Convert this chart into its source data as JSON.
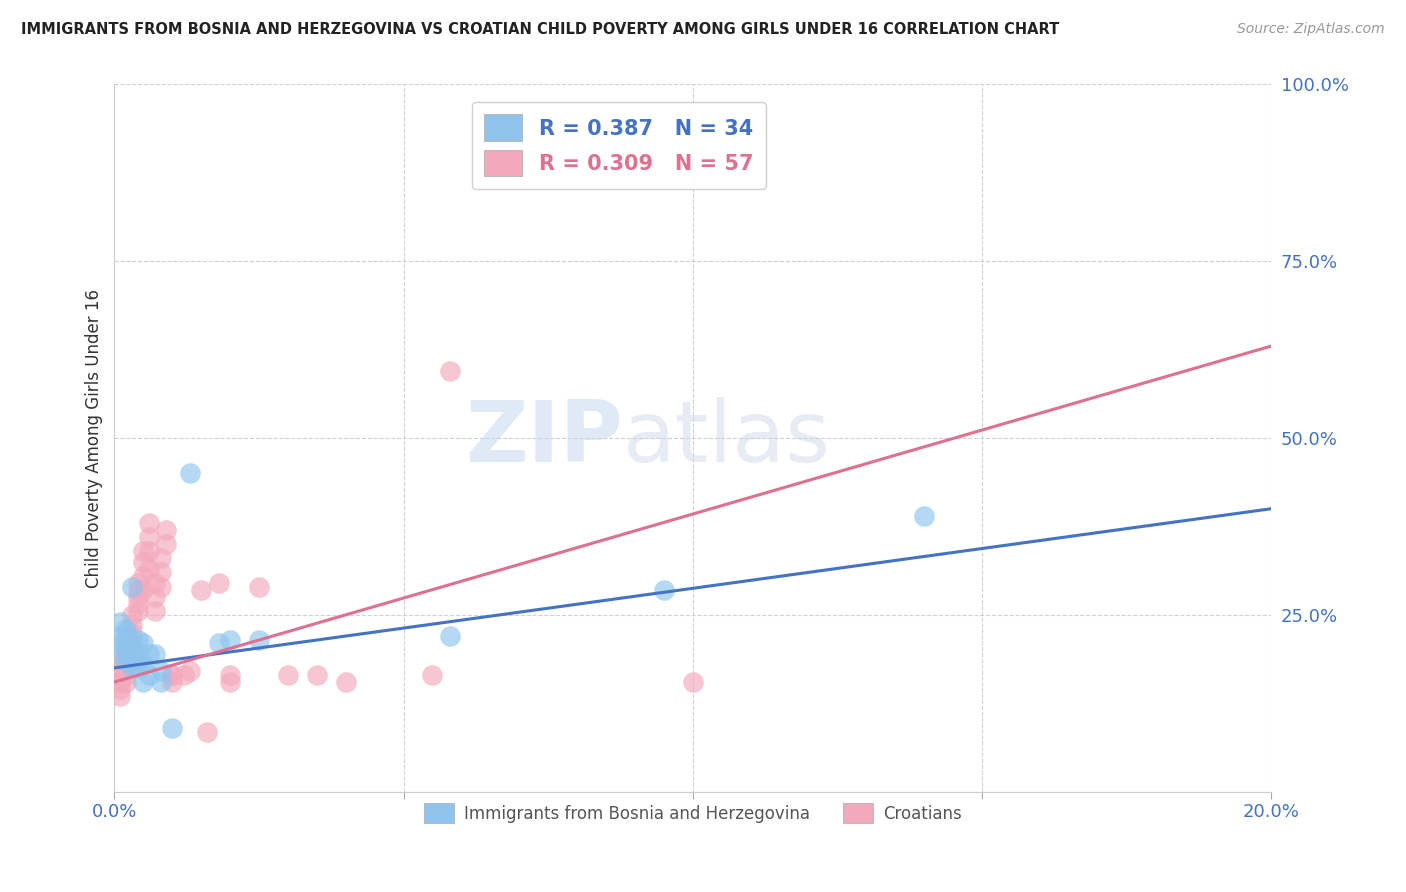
{
  "title": "IMMIGRANTS FROM BOSNIA AND HERZEGOVINA VS CROATIAN CHILD POVERTY AMONG GIRLS UNDER 16 CORRELATION CHART",
  "source": "Source: ZipAtlas.com",
  "ylabel": "Child Poverty Among Girls Under 16",
  "xlim": [
    0.0,
    0.2
  ],
  "ylim": [
    0.0,
    1.0
  ],
  "xticks": [
    0.0,
    0.05,
    0.1,
    0.15,
    0.2
  ],
  "xticklabels": [
    "0.0%",
    "",
    "",
    "",
    "20.0%"
  ],
  "yticks_right": [
    0.0,
    0.25,
    0.5,
    0.75,
    1.0
  ],
  "yticklabels_right": [
    "",
    "25.0%",
    "50.0%",
    "75.0%",
    "100.0%"
  ],
  "blue_color": "#8EC4EE",
  "pink_color": "#F4A8BC",
  "blue_line_color": "#4472C4",
  "pink_line_color": "#E07090",
  "legend_R_blue": "0.387",
  "legend_N_blue": "34",
  "legend_R_pink": "0.309",
  "legend_N_pink": "57",
  "legend_label_blue": "Immigrants from Bosnia and Herzegovina",
  "legend_label_pink": "Croatians",
  "watermark_zip": "ZIP",
  "watermark_atlas": "atlas",
  "blue_x": [
    0.001,
    0.001,
    0.001,
    0.001,
    0.002,
    0.002,
    0.002,
    0.002,
    0.002,
    0.003,
    0.003,
    0.003,
    0.003,
    0.003,
    0.004,
    0.004,
    0.004,
    0.004,
    0.005,
    0.005,
    0.005,
    0.006,
    0.006,
    0.007,
    0.008,
    0.008,
    0.01,
    0.013,
    0.018,
    0.02,
    0.025,
    0.058,
    0.095,
    0.14
  ],
  "blue_y": [
    0.195,
    0.21,
    0.22,
    0.24,
    0.185,
    0.2,
    0.215,
    0.225,
    0.23,
    0.175,
    0.185,
    0.2,
    0.215,
    0.29,
    0.175,
    0.185,
    0.195,
    0.215,
    0.155,
    0.18,
    0.21,
    0.165,
    0.195,
    0.195,
    0.155,
    0.17,
    0.09,
    0.45,
    0.21,
    0.215,
    0.215,
    0.22,
    0.285,
    0.39
  ],
  "pink_x": [
    0.001,
    0.001,
    0.001,
    0.001,
    0.001,
    0.001,
    0.001,
    0.002,
    0.002,
    0.002,
    0.002,
    0.002,
    0.002,
    0.002,
    0.003,
    0.003,
    0.003,
    0.003,
    0.003,
    0.004,
    0.004,
    0.004,
    0.004,
    0.004,
    0.005,
    0.005,
    0.005,
    0.005,
    0.006,
    0.006,
    0.006,
    0.006,
    0.007,
    0.007,
    0.007,
    0.008,
    0.008,
    0.008,
    0.009,
    0.009,
    0.01,
    0.01,
    0.01,
    0.012,
    0.013,
    0.015,
    0.016,
    0.018,
    0.02,
    0.02,
    0.025,
    0.03,
    0.035,
    0.04,
    0.055,
    0.058,
    0.1
  ],
  "pink_y": [
    0.185,
    0.175,
    0.165,
    0.155,
    0.145,
    0.135,
    0.155,
    0.215,
    0.2,
    0.195,
    0.185,
    0.175,
    0.165,
    0.155,
    0.25,
    0.235,
    0.225,
    0.21,
    0.195,
    0.295,
    0.285,
    0.275,
    0.265,
    0.255,
    0.34,
    0.325,
    0.305,
    0.285,
    0.38,
    0.36,
    0.34,
    0.315,
    0.295,
    0.275,
    0.255,
    0.33,
    0.31,
    0.29,
    0.37,
    0.35,
    0.165,
    0.165,
    0.155,
    0.165,
    0.17,
    0.285,
    0.085,
    0.295,
    0.165,
    0.155,
    0.29,
    0.165,
    0.165,
    0.155,
    0.165,
    0.595,
    0.155
  ]
}
